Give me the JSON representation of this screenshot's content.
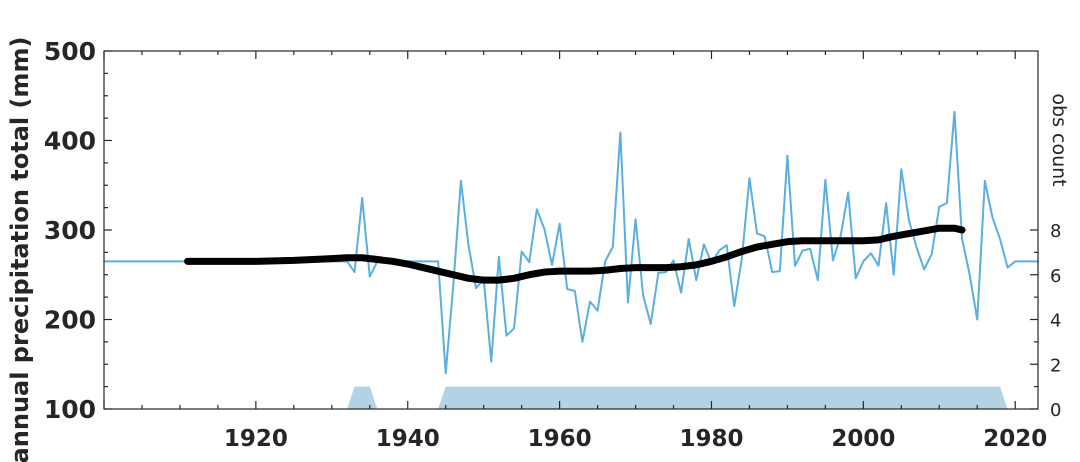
{
  "chart_data": {
    "type": "line",
    "ylabel": "annual precipitation total (mm)",
    "ylabel_right": "obs count",
    "xlim": [
      1900,
      2023
    ],
    "ylim": [
      100,
      500
    ],
    "ylim_right": [
      0,
      16
    ],
    "xticks": [
      1920,
      1940,
      1960,
      1980,
      2000,
      2020
    ],
    "yticks": [
      100,
      200,
      300,
      400,
      500
    ],
    "yticks_right": [
      0,
      2,
      4,
      6,
      8
    ],
    "grid": false,
    "colors": {
      "annual": "#5aafe0",
      "smooth": "#000000",
      "obs": "#b3d3e4"
    },
    "series": [
      {
        "style": "thin-line",
        "x": [
          1900,
          1901,
          1902,
          1903,
          1904,
          1905,
          1906,
          1907,
          1908,
          1909,
          1910,
          1911,
          1912,
          1913,
          1914,
          1915,
          1916,
          1917,
          1918,
          1919,
          1920,
          1921,
          1922,
          1923,
          1924,
          1925,
          1926,
          1927,
          1928,
          1929,
          1930,
          1931,
          1932,
          1933,
          1934,
          1935,
          1936,
          1937,
          1938,
          1939,
          1940,
          1941,
          1942,
          1943,
          1944,
          1945,
          1946,
          1947,
          1948,
          1949,
          1950,
          1951,
          1952,
          1953,
          1954,
          1955,
          1956,
          1957,
          1958,
          1959,
          1960,
          1961,
          1962,
          1963,
          1964,
          1965,
          1966,
          1967,
          1968,
          1969,
          1970,
          1971,
          1972,
          1973,
          1974,
          1975,
          1976,
          1977,
          1978,
          1979,
          1980,
          1981,
          1982,
          1983,
          1984,
          1985,
          1986,
          1987,
          1988,
          1989,
          1990,
          1991,
          1992,
          1993,
          1994,
          1995,
          1996,
          1997,
          1998,
          1999,
          2000,
          2001,
          2002,
          2003,
          2004,
          2005,
          2006,
          2007,
          2008,
          2009,
          2010,
          2011,
          2012,
          2013,
          2014,
          2015,
          2016,
          2017,
          2018,
          2019,
          2020,
          2021,
          2022,
          2023
        ],
        "values": [
          265,
          265,
          265,
          265,
          265,
          265,
          265,
          265,
          265,
          265,
          265,
          265,
          265,
          265,
          265,
          265,
          265,
          265,
          265,
          265,
          265,
          265,
          265,
          265,
          265,
          265,
          265,
          265,
          265,
          265,
          265,
          265,
          265,
          253,
          336,
          248,
          265,
          265,
          265,
          265,
          265,
          265,
          265,
          265,
          265,
          140,
          238,
          355,
          283,
          235,
          245,
          153,
          270,
          182,
          190,
          276,
          264,
          323,
          301,
          261,
          307,
          234,
          232,
          175,
          220,
          210,
          265,
          281,
          409,
          219,
          312,
          227,
          195,
          252,
          253,
          266,
          230,
          290,
          244,
          284,
          263,
          277,
          283,
          215,
          268,
          358,
          296,
          293,
          253,
          254,
          383,
          260,
          277,
          279,
          244,
          356,
          266,
          293,
          342,
          246,
          265,
          274,
          260,
          330,
          250,
          368,
          311,
          281,
          256,
          273,
          326,
          330,
          432,
          290,
          250,
          200,
          355,
          314,
          290,
          258,
          265,
          265,
          265,
          265
        ]
      },
      {
        "style": "thick-line",
        "x": [
          1911,
          1915,
          1920,
          1925,
          1930,
          1932,
          1934,
          1936,
          1938,
          1940,
          1942,
          1944,
          1946,
          1948,
          1950,
          1952,
          1954,
          1956,
          1958,
          1960,
          1962,
          1964,
          1966,
          1968,
          1970,
          1972,
          1974,
          1976,
          1978,
          1980,
          1982,
          1984,
          1986,
          1988,
          1990,
          1992,
          1994,
          1996,
          1998,
          2000,
          2002,
          2004,
          2006,
          2008,
          2010,
          2012,
          2013
        ],
        "values": [
          265,
          265,
          265,
          266,
          268,
          269,
          269,
          267,
          265,
          262,
          258,
          254,
          250,
          246,
          244,
          244,
          246,
          250,
          253,
          254,
          254,
          254,
          255,
          257,
          258,
          258,
          258,
          259,
          261,
          265,
          270,
          276,
          281,
          284,
          287,
          288,
          288,
          288,
          288,
          288,
          289,
          293,
          296,
          299,
          302,
          302,
          300
        ]
      }
    ],
    "obs_count": {
      "axis": "right",
      "x": [
        1932,
        1933,
        1935,
        1936,
        1944,
        1945,
        1946,
        2018,
        2019,
        2020
      ],
      "values": [
        0,
        1,
        1,
        0,
        0,
        1,
        1,
        1,
        0,
        0
      ]
    }
  }
}
